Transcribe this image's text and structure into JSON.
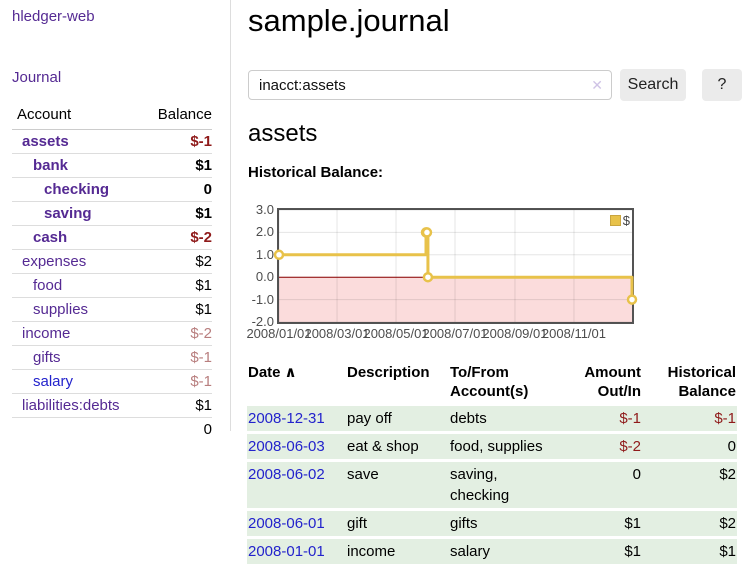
{
  "colors": {
    "accent_purple": "#552a93",
    "link_blue": "#2323cc",
    "negative_red": "#8f1a1a",
    "muted_rose": "#b87e7e",
    "row_green": "#e3efe2",
    "chart_line_gold": "#e8c24a",
    "chart_negative_pink": "#fbdcdc",
    "chart_zero_line": "#8b0000"
  },
  "app": {
    "brand": "hledger-web",
    "nav_journal": "Journal"
  },
  "sidebar": {
    "account_header": "Account",
    "balance_header": "Balance",
    "accounts": [
      {
        "name": "assets",
        "balance": "$-1",
        "depth": 1
      },
      {
        "name": "bank",
        "balance": "$1",
        "depth": 2
      },
      {
        "name": "checking",
        "balance": "0",
        "depth": 3
      },
      {
        "name": "saving",
        "balance": "$1",
        "depth": 3
      },
      {
        "name": "cash",
        "balance": "$-2",
        "depth": 2
      },
      {
        "name": "expenses",
        "balance": "$2",
        "depth": 1
      },
      {
        "name": "food",
        "balance": "$1",
        "depth": 2
      },
      {
        "name": "supplies",
        "balance": "$1",
        "depth": 2
      },
      {
        "name": "income",
        "balance": "$-2",
        "depth": 1
      },
      {
        "name": "gifts",
        "balance": "$-1",
        "depth": 2
      },
      {
        "name": "salary",
        "balance": "$-1",
        "depth": 2
      },
      {
        "name": "liabilities:debts",
        "balance": "$1",
        "depth": 1
      }
    ],
    "total": "0"
  },
  "header": {
    "title": "sample.journal"
  },
  "search": {
    "value": "inacct:assets",
    "clear_icon": "✕",
    "button": "Search",
    "help_button": "?"
  },
  "account_page": {
    "heading": "assets",
    "chart_label": "Historical Balance:"
  },
  "chart_data": {
    "type": "line",
    "title": "Historical Balance:",
    "series": [
      {
        "name": "$",
        "color": "#e8c24a",
        "steps": true,
        "points": [
          [
            "2008-01-01",
            1
          ],
          [
            "2008-06-01",
            2
          ],
          [
            "2008-06-02",
            2
          ],
          [
            "2008-06-03",
            0
          ],
          [
            "2008-12-31",
            -1
          ]
        ]
      }
    ],
    "x_range": [
      "2008-01-01",
      "2008-12-31"
    ],
    "x_ticks": [
      "2008/01/01",
      "2008/03/01",
      "2008/05/01",
      "2008/07/01",
      "2008/09/01",
      "2008/11/01"
    ],
    "y_ticks": [
      3.0,
      2.0,
      1.0,
      0.0,
      -1.0,
      -2.0
    ],
    "ylim": [
      -2,
      3
    ],
    "grid": true,
    "legend_position": "top-right",
    "negative_region_color": "#fbdcdc",
    "zero_line_color": "#8b0000"
  },
  "register": {
    "sort_icon": "∧",
    "columns": [
      {
        "label": "Date"
      },
      {
        "label": "Description"
      },
      {
        "label": "To/From Account(s)"
      },
      {
        "label": "Amount Out/In"
      },
      {
        "label": "Historical Balance"
      }
    ],
    "rows": [
      {
        "date": "2008-12-31",
        "description": "pay off",
        "accounts": "debts",
        "amount": "$-1",
        "balance": "$-1"
      },
      {
        "date": "2008-06-03",
        "description": "eat & shop",
        "accounts": "food, supplies",
        "amount": "$-2",
        "balance": "0"
      },
      {
        "date": "2008-06-02",
        "description": "save",
        "accounts": "saving, checking",
        "amount": "0",
        "balance": "$2"
      },
      {
        "date": "2008-06-01",
        "description": "gift",
        "accounts": "gifts",
        "amount": "$1",
        "balance": "$2"
      },
      {
        "date": "2008-01-01",
        "description": "income",
        "accounts": "salary",
        "amount": "$1",
        "balance": "$1"
      }
    ]
  }
}
